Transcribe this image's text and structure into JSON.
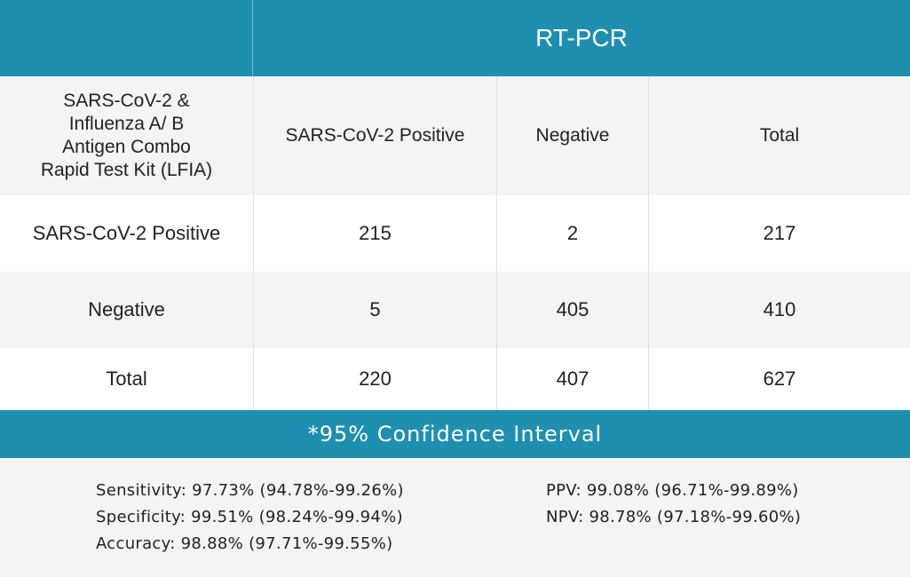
{
  "header": {
    "title": "RT-PCR"
  },
  "table": {
    "kit_label": [
      "SARS-CoV-2 &",
      "Influenza A/ B",
      "Antigen Combo",
      "Rapid Test Kit (LFIA)"
    ],
    "columns": [
      "SARS-CoV-2 Positive",
      "Negative",
      "Total"
    ],
    "rows": [
      {
        "label": "SARS-CoV-2 Positive",
        "values": [
          "215",
          "2",
          "217"
        ]
      },
      {
        "label": "Negative",
        "values": [
          "5",
          "405",
          "410"
        ]
      },
      {
        "label": "Total",
        "values": [
          "220",
          "407",
          "627"
        ]
      }
    ]
  },
  "confidence": {
    "title": "*95% Confidence Interval",
    "sensitivity": "Sensitivity: 97.73% (94.78%-99.26%)",
    "specificity": "Specificity: 99.51% (98.24%-99.94%)",
    "accuracy": "Accuracy: 98.88% (97.71%-99.55%)",
    "ppv": "PPV: 99.08% (96.71%-99.89%)",
    "npv": "NPV: 98.78% (97.18%-99.60%)"
  },
  "colors": {
    "accent": "#1f8fb0",
    "row_alt": "#f4f4f4",
    "row_white": "#ffffff"
  }
}
